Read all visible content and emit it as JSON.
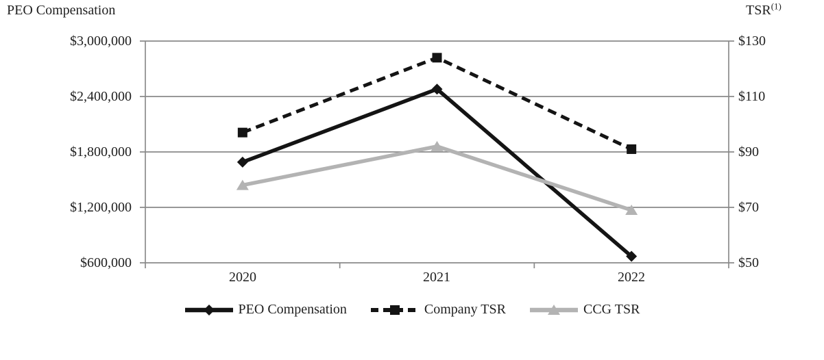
{
  "chart_data": {
    "type": "line",
    "title_left": "PEO Compensation",
    "title_right": "TSR",
    "title_right_superscript": "(1)",
    "categories": [
      "2020",
      "2021",
      "2022"
    ],
    "left_axis": {
      "label": "PEO Compensation",
      "min": 600000,
      "max": 3000000,
      "tick_step": 600000,
      "ticks": [
        "$3,000,000",
        "$2,400,000",
        "$1,800,000",
        "$1,200,000",
        "$600,000"
      ]
    },
    "right_axis": {
      "label": "TSR(1)",
      "min": 50,
      "max": 130,
      "tick_step": 20,
      "ticks": [
        "$130",
        "$110",
        "$90",
        "$70",
        "$50"
      ]
    },
    "series": [
      {
        "name": "PEO Compensation",
        "axis": "left",
        "marker": "diamond",
        "line_style": "solid",
        "color": "#141414",
        "width": 5.5,
        "values": [
          1690000,
          2480000,
          670000
        ]
      },
      {
        "name": "Company TSR",
        "axis": "right",
        "marker": "square",
        "line_style": "dashed",
        "dash": "13 8",
        "color": "#141414",
        "width": 5,
        "values": [
          97,
          124,
          91
        ]
      },
      {
        "name": "CCG TSR",
        "axis": "right",
        "marker": "triangle",
        "line_style": "solid",
        "color": "#b3b3b3",
        "width": 5.5,
        "values": [
          78,
          92,
          69
        ]
      }
    ],
    "grid": "horizontal",
    "legend_position": "bottom",
    "colors": {
      "grid": "#8a8a8a",
      "text": "#1f1f1f",
      "background": "#ffffff"
    }
  }
}
